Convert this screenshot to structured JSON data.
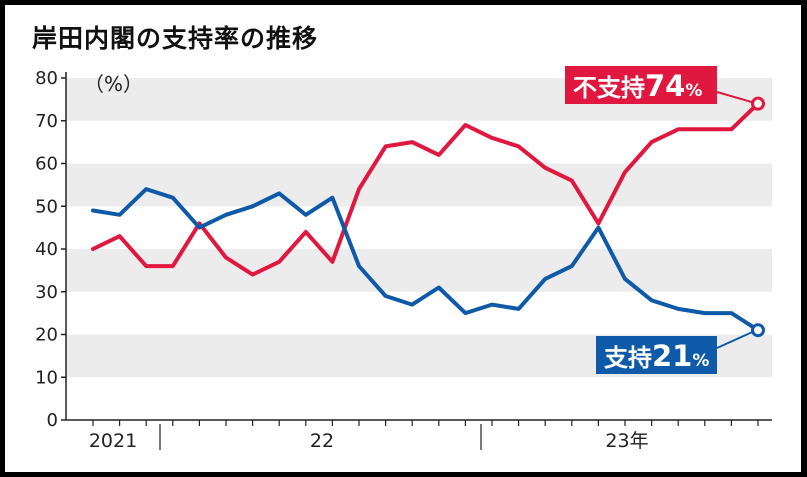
{
  "chart_data": {
    "type": "line",
    "title": "岸田内閣の支持率の推移",
    "ylabel": "（%）",
    "ylim": [
      0,
      80
    ],
    "yticks": [
      0,
      10,
      20,
      30,
      40,
      50,
      60,
      70,
      80
    ],
    "grid": "alternating horizontal bands",
    "x_period_labels": [
      "2021",
      "22",
      "23年"
    ],
    "series": [
      {
        "name": "不支持",
        "color": "#e0173f",
        "values": [
          40,
          43,
          36,
          36,
          46,
          38,
          34,
          37,
          44,
          37,
          54,
          64,
          65,
          62,
          69,
          66,
          64,
          59,
          56,
          46,
          58,
          65,
          68,
          68,
          68,
          74
        ],
        "callout": {
          "label": "不支持",
          "value": "74",
          "unit": "%"
        }
      },
      {
        "name": "支持",
        "color": "#0f5aa8",
        "values": [
          49,
          48,
          54,
          52,
          45,
          48,
          50,
          53,
          48,
          52,
          36,
          29,
          27,
          31,
          25,
          27,
          26,
          33,
          36,
          45,
          33,
          28,
          26,
          25,
          25,
          21
        ],
        "callout": {
          "label": "支持",
          "value": "21",
          "unit": "%"
        }
      }
    ]
  }
}
